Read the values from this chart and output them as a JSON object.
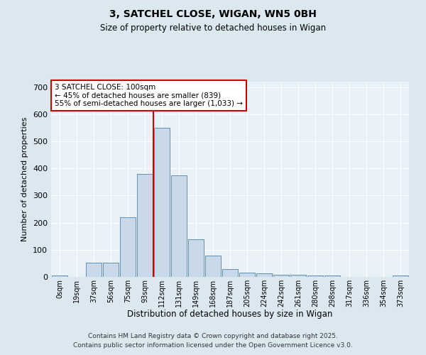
{
  "title1": "3, SATCHEL CLOSE, WIGAN, WN5 0BH",
  "title2": "Size of property relative to detached houses in Wigan",
  "xlabel": "Distribution of detached houses by size in Wigan",
  "ylabel": "Number of detached properties",
  "bin_labels": [
    "0sqm",
    "19sqm",
    "37sqm",
    "56sqm",
    "75sqm",
    "93sqm",
    "112sqm",
    "131sqm",
    "149sqm",
    "168sqm",
    "187sqm",
    "205sqm",
    "224sqm",
    "242sqm",
    "261sqm",
    "280sqm",
    "298sqm",
    "317sqm",
    "336sqm",
    "354sqm",
    "373sqm"
  ],
  "bar_values": [
    5,
    0,
    52,
    52,
    220,
    380,
    550,
    375,
    138,
    78,
    30,
    17,
    13,
    7,
    7,
    5,
    5,
    1,
    1,
    0,
    4
  ],
  "bar_color": "#c9d9ea",
  "bar_edge_color": "#6090b8",
  "red_line_x": 6.0,
  "annotation_text": "3 SATCHEL CLOSE: 100sqm\n← 45% of detached houses are smaller (839)\n55% of semi-detached houses are larger (1,033) →",
  "annotation_box_color": "#ffffff",
  "annotation_box_edge_color": "#cc0000",
  "footer1": "Contains HM Land Registry data © Crown copyright and database right 2025.",
  "footer2": "Contains public sector information licensed under the Open Government Licence v3.0.",
  "background_color": "#dce8f0",
  "plot_background": "#e8f0f8",
  "ylim": [
    0,
    720
  ],
  "yticks": [
    0,
    100,
    200,
    300,
    400,
    500,
    600,
    700
  ]
}
